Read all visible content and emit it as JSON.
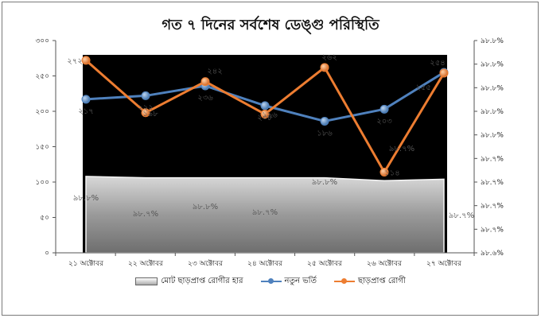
{
  "chart_data": {
    "type": "line",
    "title": "গত ৭ দিনের সর্বশেষ ডেঙ্গু পরিস্থিতি",
    "categories": [
      "২১ অক্টোবর",
      "২২ অক্টোবর",
      "২৩ অক্টোবর",
      "২৪ অক্টোবর",
      "২৫ অক্টোবর",
      "২৬ অক্টোবর",
      "২৭ অক্টোবর"
    ],
    "y_left": {
      "ylim": [
        0,
        300
      ],
      "ticks": [
        "০",
        "৫০",
        "১০০",
        "১৫০",
        "২০০",
        "২৫০",
        "৩০০"
      ],
      "tick_values": [
        0,
        50,
        100,
        150,
        200,
        250,
        300
      ]
    },
    "y_right": {
      "ticks": [
        "৯৮.৬%",
        "৯৮.৭%",
        "৯৮.৭%",
        "৯৮.৭%",
        "৯৮.৭%",
        "৯৮.৮%",
        "৯৮.৮%",
        "৯৮.৮%",
        "৯৮.৮%",
        "৯৮.৮%"
      ]
    },
    "series": [
      {
        "name": "মোট ছাড়প্রাপ্ত রোগীর হার",
        "kind": "area",
        "color": "#9a9a9a",
        "values": [
          108,
          106,
          106,
          106,
          106,
          102,
          104
        ],
        "labels": [
          "৯৮.৮%",
          "৯৮.৭%",
          "৯৮.৮%",
          "৯৮.৭%",
          "৯৮.৮%",
          "৯৮.৭%",
          "৯৮.৭%"
        ]
      },
      {
        "name": "নতুন ভর্তি",
        "kind": "line",
        "color": "#4f81bd",
        "values": [
          217,
          222,
          236,
          208,
          186,
          203,
          255
        ],
        "labels": [
          "২১৭",
          "২২২",
          "২৩৬",
          "২০৮",
          "১৮৬",
          "২০৩",
          "২৫৫"
        ]
      },
      {
        "name": "ছাড়প্রাপ্ত রোগী",
        "kind": "line",
        "color": "#ed7d31",
        "values": [
          272,
          198,
          242,
          196,
          262,
          114,
          254
        ],
        "labels": [
          "২৭২",
          "১৯৮",
          "২৪২",
          "১৯৬",
          "২৬২",
          "১১৪",
          "২৫৪"
        ]
      }
    ],
    "legend_position": "bottom"
  },
  "colors": {
    "plot_background": "#000000",
    "axis": "#555555"
  }
}
